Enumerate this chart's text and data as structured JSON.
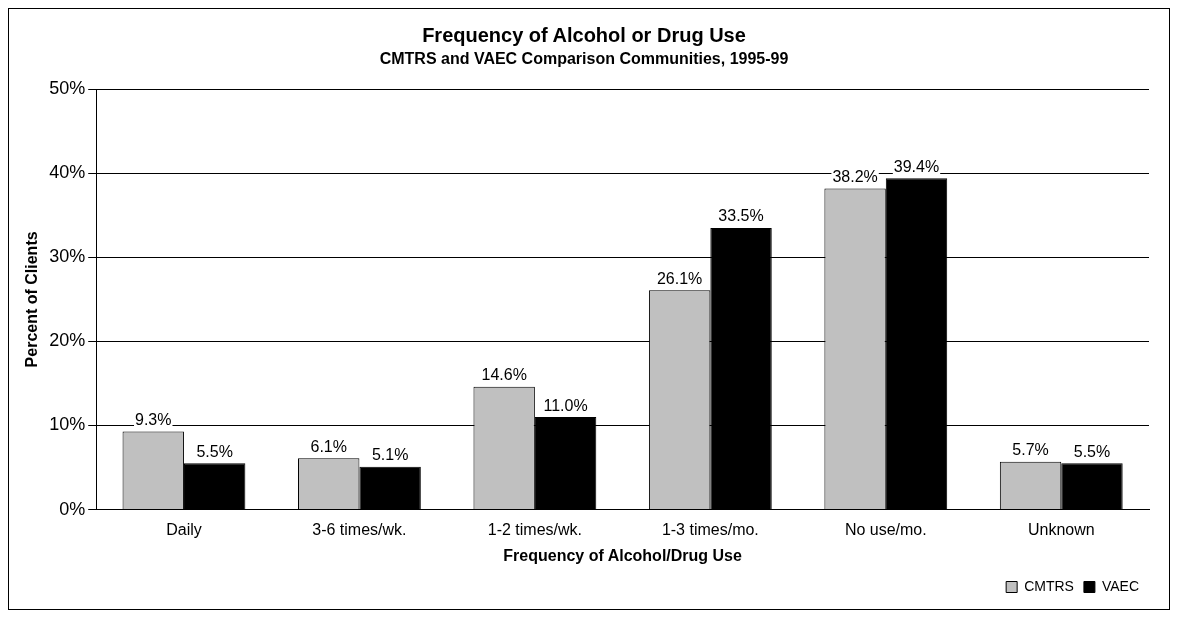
{
  "chart_data": {
    "type": "bar",
    "title": "Frequency of Alcohol or Drug Use",
    "subtitle": "CMTRS and VAEC Comparison Communities, 1995-99",
    "xlabel": "Frequency of Alcohol/Drug Use",
    "ylabel": "Percent of Clients",
    "categories": [
      "Daily",
      "3-6 times/wk.",
      "1-2 times/wk.",
      "1-3 times/mo.",
      "No use/mo.",
      "Unknown"
    ],
    "series": [
      {
        "name": "CMTRS",
        "color": "#c0c0c0",
        "values": [
          9.3,
          6.1,
          14.6,
          26.1,
          38.2,
          5.7
        ],
        "value_labels": [
          "9.3%",
          "6.1%",
          "14.6%",
          "26.1%",
          "38.2%",
          "5.7%"
        ]
      },
      {
        "name": "VAEC",
        "color": "#000000",
        "values": [
          5.5,
          5.1,
          11.0,
          33.5,
          39.4,
          5.5
        ],
        "value_labels": [
          "5.5%",
          "5.1%",
          "11.0%",
          "33.5%",
          "39.4%",
          "5.5%"
        ]
      }
    ],
    "ylim": [
      0,
      50
    ],
    "yticks": [
      {
        "value": 0,
        "label": "0%"
      },
      {
        "value": 10,
        "label": "10%"
      },
      {
        "value": 20,
        "label": "20%"
      },
      {
        "value": 30,
        "label": "30%"
      },
      {
        "value": 40,
        "label": "40%"
      },
      {
        "value": 50,
        "label": "50%"
      }
    ],
    "grid": "y",
    "legend": "bottom right"
  }
}
